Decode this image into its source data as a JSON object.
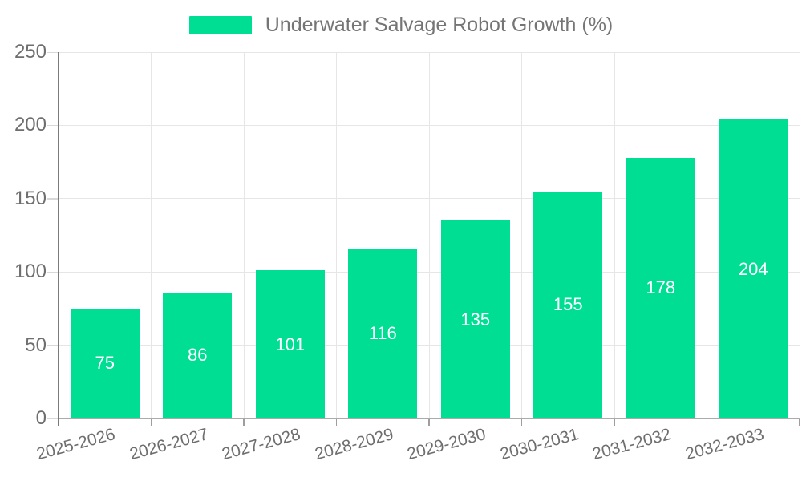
{
  "chart_data": {
    "type": "bar",
    "title": "Underwater Salvage Robot Growth (%)",
    "categories": [
      "2025-2026",
      "2026-2027",
      "2027-2028",
      "2028-2029",
      "2029-2030",
      "2030-2031",
      "2031-2032",
      "2032-2033"
    ],
    "values": [
      75,
      86,
      101,
      116,
      135,
      155,
      178,
      204
    ],
    "xlabel": "",
    "ylabel": "",
    "ylim": [
      0,
      250
    ],
    "yticks": [
      0,
      50,
      100,
      150,
      200,
      250
    ],
    "grid": "both",
    "legend_position": "top-center",
    "colors": {
      "bar": "#00DE94",
      "value_label": "#FFFFFF",
      "axis_label": "#6E6E6E",
      "legend_text": "#757575",
      "gridline": "#E6E6E6",
      "y_tick": "#D8D8D8",
      "x_tick": "#9E9E9E",
      "bottom_axis": "#ABABAB",
      "left_axis": "#7A7A7A",
      "background": "#FFFFFF"
    }
  }
}
